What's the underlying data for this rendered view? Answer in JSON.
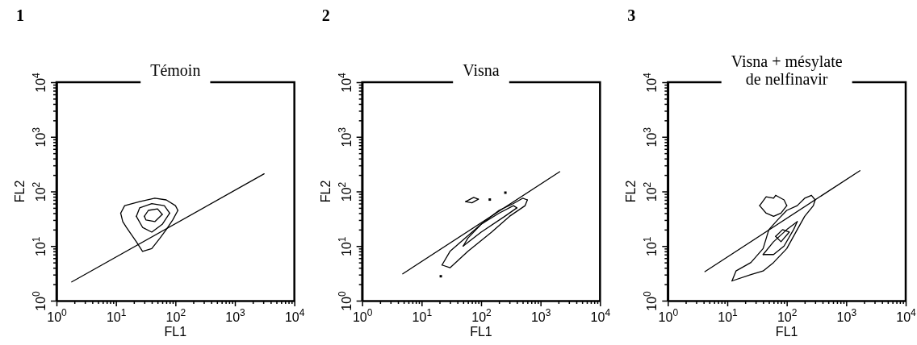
{
  "chart_data": [
    {
      "type": "line",
      "title": "Témoin",
      "xlabel": "FL1",
      "ylabel": "FL2",
      "log": "xy",
      "grid": false,
      "legend": false,
      "marker": "none",
      "annotations": [
        "1"
      ],
      "xlim": [
        1,
        10000
      ],
      "ylim": [
        1,
        10000
      ],
      "xticks": [
        {
          "value": 1,
          "label": "10$^{0}$"
        },
        {
          "value": 2,
          "label": null
        },
        {
          "value": 3,
          "label": null
        },
        {
          "value": 4,
          "label": null
        },
        {
          "value": 5,
          "label": null
        },
        {
          "value": 6,
          "label": null
        },
        {
          "value": 7,
          "label": null
        },
        {
          "value": 8,
          "label": null
        },
        {
          "value": 9,
          "label": null
        },
        {
          "value": 10,
          "label": "10$^{1}$"
        },
        {
          "value": 20,
          "label": null
        },
        {
          "value": 30,
          "label": null
        },
        {
          "value": 40,
          "label": null
        },
        {
          "value": 50,
          "label": null
        },
        {
          "value": 60,
          "label": null
        },
        {
          "value": 70,
          "label": null
        },
        {
          "value": 80,
          "label": null
        },
        {
          "value": 90,
          "label": null
        },
        {
          "value": 100,
          "label": "10$^{2}$"
        },
        {
          "value": 200,
          "label": null
        },
        {
          "value": 300,
          "label": null
        },
        {
          "value": 400,
          "label": null
        },
        {
          "value": 500,
          "label": null
        },
        {
          "value": 600,
          "label": null
        },
        {
          "value": 700,
          "label": null
        },
        {
          "value": 800,
          "label": null
        },
        {
          "value": 900,
          "label": null
        },
        {
          "value": 1000,
          "label": "10$^{3}$"
        },
        {
          "value": 2000,
          "label": null
        },
        {
          "value": 3000,
          "label": null
        },
        {
          "value": 4000,
          "label": null
        },
        {
          "value": 5000,
          "label": null
        },
        {
          "value": 6000,
          "label": null
        },
        {
          "value": 7000,
          "label": null
        },
        {
          "value": 8000,
          "label": null
        },
        {
          "value": 9000,
          "label": null
        },
        {
          "value": 10000,
          "label": "10$^{4}$"
        }
      ],
      "yticks": [
        {
          "value": 1,
          "label": "10$^{0}$"
        },
        {
          "value": 2,
          "label": null
        },
        {
          "value": 3,
          "label": null
        },
        {
          "value": 4,
          "label": null
        },
        {
          "value": 5,
          "label": null
        },
        {
          "value": 6,
          "label": null
        },
        {
          "value": 7,
          "label": null
        },
        {
          "value": 8,
          "label": null
        },
        {
          "value": 9,
          "label": null
        },
        {
          "value": 10,
          "label": "10$^{1}$"
        },
        {
          "value": 20,
          "label": null
        },
        {
          "value": 30,
          "label": null
        },
        {
          "value": 40,
          "label": null
        },
        {
          "value": 50,
          "label": null
        },
        {
          "value": 60,
          "label": null
        },
        {
          "value": 70,
          "label": null
        },
        {
          "value": 80,
          "label": null
        },
        {
          "value": 90,
          "label": null
        },
        {
          "value": 100,
          "label": "10$^{2}$"
        },
        {
          "value": 200,
          "label": null
        },
        {
          "value": 300,
          "label": null
        },
        {
          "value": 400,
          "label": null
        },
        {
          "value": 500,
          "label": null
        },
        {
          "value": 600,
          "label": null
        },
        {
          "value": 700,
          "label": null
        },
        {
          "value": 800,
          "label": null
        },
        {
          "value": 900,
          "label": null
        },
        {
          "value": 1000,
          "label": "10$^{3}$"
        },
        {
          "value": 2000,
          "label": null
        },
        {
          "value": 3000,
          "label": null
        },
        {
          "value": 4000,
          "label": null
        },
        {
          "value": 5000,
          "label": null
        },
        {
          "value": 6000,
          "label": null
        },
        {
          "value": 7000,
          "label": null
        },
        {
          "value": 8000,
          "label": null
        },
        {
          "value": 9000,
          "label": null
        },
        {
          "value": 10000,
          "label": "10$^{4}$"
        }
      ],
      "series": [
        {
          "type": "line",
          "color": "#000000",
          "x": [
            1.8,
            3100
          ],
          "values": [
            2.2,
            210
          ]
        },
        {
          "type": "line",
          "color": "#000000",
          "x": [
            12,
            14,
            25,
            45,
            70,
            100,
            110
          ],
          "values": [
            40,
            55,
            65,
            75,
            70,
            55,
            45
          ]
        },
        {
          "type": "line",
          "color": "#000000",
          "x": [
            12,
            13,
            15,
            22,
            28,
            40,
            55,
            70,
            90,
            110
          ],
          "values": [
            40,
            28,
            22,
            12,
            8,
            9,
            14,
            20,
            30,
            45
          ]
        },
        {
          "type": "line",
          "color": "#000000",
          "x": [
            22,
            25,
            40,
            65,
            80
          ],
          "values": [
            35,
            50,
            60,
            55,
            40
          ]
        },
        {
          "type": "line",
          "color": "#000000",
          "x": [
            22,
            28,
            40,
            60,
            80
          ],
          "values": [
            35,
            22,
            18,
            25,
            40
          ]
        },
        {
          "type": "line",
          "color": "#000000",
          "x": [
            30,
            35,
            50,
            60
          ],
          "values": [
            35,
            45,
            48,
            38
          ]
        },
        {
          "type": "line",
          "color": "#000000",
          "x": [
            30,
            32,
            45,
            60
          ],
          "values": [
            35,
            30,
            28,
            38
          ]
        }
      ]
    },
    {
      "type": "line",
      "title": "Visna",
      "xlabel": "FL1",
      "ylabel": "FL2",
      "log": "xy",
      "grid": false,
      "legend": false,
      "marker": "none",
      "annotations": [
        "2"
      ],
      "xlim": [
        1,
        10000
      ],
      "ylim": [
        1,
        10000
      ],
      "xticks": [
        {
          "value": 1,
          "label": "10$^{0}$"
        },
        {
          "value": 2,
          "label": null
        },
        {
          "value": 3,
          "label": null
        },
        {
          "value": 4,
          "label": null
        },
        {
          "value": 5,
          "label": null
        },
        {
          "value": 6,
          "label": null
        },
        {
          "value": 7,
          "label": null
        },
        {
          "value": 8,
          "label": null
        },
        {
          "value": 9,
          "label": null
        },
        {
          "value": 10,
          "label": "10$^{1}$"
        },
        {
          "value": 20,
          "label": null
        },
        {
          "value": 30,
          "label": null
        },
        {
          "value": 40,
          "label": null
        },
        {
          "value": 50,
          "label": null
        },
        {
          "value": 60,
          "label": null
        },
        {
          "value": 70,
          "label": null
        },
        {
          "value": 80,
          "label": null
        },
        {
          "value": 90,
          "label": null
        },
        {
          "value": 100,
          "label": "10$^{2}$"
        },
        {
          "value": 200,
          "label": null
        },
        {
          "value": 300,
          "label": null
        },
        {
          "value": 400,
          "label": null
        },
        {
          "value": 500,
          "label": null
        },
        {
          "value": 600,
          "label": null
        },
        {
          "value": 700,
          "label": null
        },
        {
          "value": 800,
          "label": null
        },
        {
          "value": 900,
          "label": null
        },
        {
          "value": 1000,
          "label": "10$^{3}$"
        },
        {
          "value": 2000,
          "label": null
        },
        {
          "value": 3000,
          "label": null
        },
        {
          "value": 4000,
          "label": null
        },
        {
          "value": 5000,
          "label": null
        },
        {
          "value": 6000,
          "label": null
        },
        {
          "value": 7000,
          "label": null
        },
        {
          "value": 8000,
          "label": null
        },
        {
          "value": 9000,
          "label": null
        },
        {
          "value": 10000,
          "label": "10$^{4}$"
        }
      ],
      "yticks": [
        {
          "value": 1,
          "label": "10$^{0}$"
        },
        {
          "value": 2,
          "label": null
        },
        {
          "value": 3,
          "label": null
        },
        {
          "value": 4,
          "label": null
        },
        {
          "value": 5,
          "label": null
        },
        {
          "value": 6,
          "label": null
        },
        {
          "value": 7,
          "label": null
        },
        {
          "value": 8,
          "label": null
        },
        {
          "value": 9,
          "label": null
        },
        {
          "value": 10,
          "label": "10$^{1}$"
        },
        {
          "value": 20,
          "label": null
        },
        {
          "value": 30,
          "label": null
        },
        {
          "value": 40,
          "label": null
        },
        {
          "value": 50,
          "label": null
        },
        {
          "value": 60,
          "label": null
        },
        {
          "value": 70,
          "label": null
        },
        {
          "value": 80,
          "label": null
        },
        {
          "value": 90,
          "label": null
        },
        {
          "value": 100,
          "label": "10$^{2}$"
        },
        {
          "value": 200,
          "label": null
        },
        {
          "value": 300,
          "label": null
        },
        {
          "value": 400,
          "label": null
        },
        {
          "value": 500,
          "label": null
        },
        {
          "value": 600,
          "label": null
        },
        {
          "value": 700,
          "label": null
        },
        {
          "value": 800,
          "label": null
        },
        {
          "value": 900,
          "label": null
        },
        {
          "value": 1000,
          "label": "10$^{3}$"
        },
        {
          "value": 2000,
          "label": null
        },
        {
          "value": 3000,
          "label": null
        },
        {
          "value": 4000,
          "label": null
        },
        {
          "value": 5000,
          "label": null
        },
        {
          "value": 6000,
          "label": null
        },
        {
          "value": 7000,
          "label": null
        },
        {
          "value": 8000,
          "label": null
        },
        {
          "value": 9000,
          "label": null
        },
        {
          "value": 10000,
          "label": "10$^{4}$"
        }
      ],
      "series": [
        {
          "type": "line",
          "color": "#000000",
          "x": [
            4.8,
            2100
          ],
          "values": [
            3.1,
            230
          ]
        },
        {
          "type": "line",
          "color": "#000000",
          "x": [
            22,
            30,
            50,
            100,
            200,
            350,
            500,
            600
          ],
          "values": [
            4.5,
            8,
            13,
            25,
            45,
            60,
            75,
            70
          ]
        },
        {
          "type": "line",
          "color": "#000000",
          "x": [
            22,
            30,
            60,
            150,
            300,
            550,
            600
          ],
          "values": [
            4.5,
            4,
            8,
            18,
            35,
            55,
            70
          ]
        },
        {
          "type": "line",
          "color": "#000000",
          "x": [
            50,
            60,
            100,
            200,
            350,
            400
          ],
          "values": [
            10,
            14,
            25,
            40,
            55,
            50
          ]
        },
        {
          "type": "line",
          "color": "#000000",
          "x": [
            50,
            100,
            250,
            400
          ],
          "values": [
            10,
            18,
            35,
            50
          ]
        },
        {
          "type": "line",
          "color": "#000000",
          "x": [
            55,
            75,
            90
          ],
          "values": [
            65,
            78,
            72
          ]
        },
        {
          "type": "line",
          "color": "#000000",
          "x": [
            55,
            70,
            90
          ],
          "values": [
            65,
            62,
            72
          ]
        },
        {
          "type": "scatter",
          "color": "#000000",
          "marker": "square",
          "x": [
            21,
            140,
            256
          ],
          "values": [
            2.8,
            71,
            95
          ]
        }
      ]
    },
    {
      "type": "line",
      "title": "Visna + mésylate\nde nelfinavir",
      "xlabel": "FL1",
      "ylabel": "FL2",
      "log": "xy",
      "grid": false,
      "legend": false,
      "marker": "none",
      "annotations": [
        "3"
      ],
      "xlim": [
        1,
        10000
      ],
      "ylim": [
        1,
        10000
      ],
      "xticks": [
        {
          "value": 1,
          "label": "10$^{0}$"
        },
        {
          "value": 2,
          "label": null
        },
        {
          "value": 3,
          "label": null
        },
        {
          "value": 4,
          "label": null
        },
        {
          "value": 5,
          "label": null
        },
        {
          "value": 6,
          "label": null
        },
        {
          "value": 7,
          "label": null
        },
        {
          "value": 8,
          "label": null
        },
        {
          "value": 9,
          "label": null
        },
        {
          "value": 10,
          "label": "10$^{1}$"
        },
        {
          "value": 20,
          "label": null
        },
        {
          "value": 30,
          "label": null
        },
        {
          "value": 40,
          "label": null
        },
        {
          "value": 50,
          "label": null
        },
        {
          "value": 60,
          "label": null
        },
        {
          "value": 70,
          "label": null
        },
        {
          "value": 80,
          "label": null
        },
        {
          "value": 90,
          "label": null
        },
        {
          "value": 100,
          "label": "10$^{2}$"
        },
        {
          "value": 200,
          "label": null
        },
        {
          "value": 300,
          "label": null
        },
        {
          "value": 400,
          "label": null
        },
        {
          "value": 500,
          "label": null
        },
        {
          "value": 600,
          "label": null
        },
        {
          "value": 700,
          "label": null
        },
        {
          "value": 800,
          "label": null
        },
        {
          "value": 900,
          "label": null
        },
        {
          "value": 1000,
          "label": "10$^{3}$"
        },
        {
          "value": 2000,
          "label": null
        },
        {
          "value": 3000,
          "label": null
        },
        {
          "value": 4000,
          "label": null
        },
        {
          "value": 5000,
          "label": null
        },
        {
          "value": 6000,
          "label": null
        },
        {
          "value": 7000,
          "label": null
        },
        {
          "value": 8000,
          "label": null
        },
        {
          "value": 9000,
          "label": null
        },
        {
          "value": 10000,
          "label": "10$^{4}$"
        }
      ],
      "yticks": [
        {
          "value": 1,
          "label": "10$^{0}$"
        },
        {
          "value": 2,
          "label": null
        },
        {
          "value": 3,
          "label": null
        },
        {
          "value": 4,
          "label": null
        },
        {
          "value": 5,
          "label": null
        },
        {
          "value": 6,
          "label": null
        },
        {
          "value": 7,
          "label": null
        },
        {
          "value": 8,
          "label": null
        },
        {
          "value": 9,
          "label": null
        },
        {
          "value": 10,
          "label": "10$^{1}$"
        },
        {
          "value": 20,
          "label": null
        },
        {
          "value": 30,
          "label": null
        },
        {
          "value": 40,
          "label": null
        },
        {
          "value": 50,
          "label": null
        },
        {
          "value": 60,
          "label": null
        },
        {
          "value": 70,
          "label": null
        },
        {
          "value": 80,
          "label": null
        },
        {
          "value": 90,
          "label": null
        },
        {
          "value": 100,
          "label": "10$^{2}$"
        },
        {
          "value": 200,
          "label": null
        },
        {
          "value": 300,
          "label": null
        },
        {
          "value": 400,
          "label": null
        },
        {
          "value": 500,
          "label": null
        },
        {
          "value": 600,
          "label": null
        },
        {
          "value": 700,
          "label": null
        },
        {
          "value": 800,
          "label": null
        },
        {
          "value": 900,
          "label": null
        },
        {
          "value": 1000,
          "label": "10$^{3}$"
        },
        {
          "value": 2000,
          "label": null
        },
        {
          "value": 3000,
          "label": null
        },
        {
          "value": 4000,
          "label": null
        },
        {
          "value": 5000,
          "label": null
        },
        {
          "value": 6000,
          "label": null
        },
        {
          "value": 7000,
          "label": null
        },
        {
          "value": 8000,
          "label": null
        },
        {
          "value": 9000,
          "label": null
        },
        {
          "value": 10000,
          "label": "10$^{4}$"
        }
      ],
      "series": [
        {
          "type": "line",
          "color": "#000000",
          "x": [
            4.2,
            1700
          ],
          "values": [
            3.4,
            240
          ]
        },
        {
          "type": "line",
          "color": "#000000",
          "x": [
            12,
            14,
            25,
            40,
            50,
            70,
            100,
            150,
            200,
            260,
            300
          ],
          "values": [
            2.3,
            3.5,
            5,
            9,
            20,
            30,
            45,
            55,
            75,
            85,
            70
          ]
        },
        {
          "type": "line",
          "color": "#000000",
          "x": [
            12,
            25,
            40,
            60,
            100,
            150,
            200,
            280,
            300
          ],
          "values": [
            2.3,
            3,
            3.5,
            5,
            9,
            20,
            35,
            55,
            70
          ]
        },
        {
          "type": "line",
          "color": "#000000",
          "x": [
            35,
            45,
            60,
            65,
            90,
            100
          ],
          "values": [
            55,
            80,
            75,
            85,
            70,
            55
          ]
        },
        {
          "type": "line",
          "color": "#000000",
          "x": [
            35,
            45,
            60,
            80,
            100
          ],
          "values": [
            55,
            40,
            35,
            40,
            55
          ]
        },
        {
          "type": "line",
          "color": "#000000",
          "x": [
            40,
            60,
            100,
            150
          ],
          "values": [
            7,
            12,
            20,
            28
          ]
        },
        {
          "type": "line",
          "color": "#000000",
          "x": [
            40,
            60,
            90,
            130,
            150
          ],
          "values": [
            7,
            7,
            10,
            20,
            28
          ]
        },
        {
          "type": "line",
          "color": "#000000",
          "x": [
            65,
            85,
            110
          ],
          "values": [
            15,
            20,
            18
          ]
        },
        {
          "type": "line",
          "color": "#000000",
          "x": [
            65,
            80,
            110
          ],
          "values": [
            15,
            12,
            18
          ]
        }
      ]
    }
  ]
}
